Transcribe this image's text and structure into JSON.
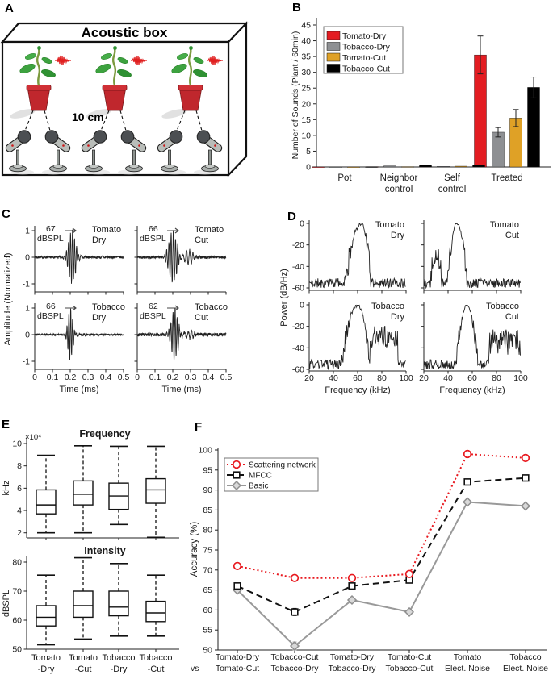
{
  "panel_labels": {
    "a": "A",
    "b": "B",
    "c": "C",
    "d": "D",
    "e": "E",
    "f": "F"
  },
  "panelA": {
    "title": "Acoustic box",
    "distance": "10 cm",
    "colors": {
      "pot_red": "#c0272d",
      "leaf_green": "#3da23f",
      "wave_red": "#e01f1f",
      "mic_gray": "#b9bdb9"
    }
  },
  "chart_data": [
    {
      "id": "B",
      "type": "bar",
      "ylabel": "Number of Sounds (Plant / 60min)",
      "ylim": [
        0,
        45
      ],
      "yticks": [
        0,
        5,
        10,
        15,
        20,
        25,
        30,
        35,
        40,
        45
      ],
      "categories": [
        "Pot",
        "Neighbor control",
        "Self control",
        "Treated"
      ],
      "cat_lines": [
        [
          "Pot"
        ],
        [
          "Neighbor",
          "control"
        ],
        [
          "Self",
          "control"
        ],
        [
          "Treated"
        ]
      ],
      "legend_position": "top-left",
      "series": [
        {
          "name": "Tomato-Dry",
          "color": "#e31c22",
          "values": [
            0.05,
            0.1,
            0.15,
            35.5
          ],
          "errors": [
            0.05,
            0.08,
            0.1,
            6
          ]
        },
        {
          "name": "Tobacco-Dry",
          "color": "#8e9093",
          "values": [
            0.05,
            0.35,
            0.2,
            11
          ],
          "errors": [
            0.05,
            0.12,
            0.1,
            1.5
          ]
        },
        {
          "name": "Tomato-Cut",
          "color": "#dfa126",
          "values": [
            0.05,
            0.1,
            0.25,
            15.5
          ],
          "errors": [
            0.05,
            0.08,
            0.12,
            2.7
          ]
        },
        {
          "name": "Tobacco-Cut",
          "color": "#000000",
          "values": [
            0.08,
            0.55,
            0.65,
            25.2
          ],
          "errors": [
            0.06,
            0.15,
            0.18,
            3.3
          ]
        }
      ]
    },
    {
      "id": "C",
      "type": "line",
      "ylabel": "Amplitude (Normalized)",
      "xlabel": "Time (ms)",
      "yticks": [
        1,
        0,
        -1
      ],
      "xticks": [
        0,
        0.1,
        0.2,
        0.3,
        0.4,
        0.5
      ],
      "xlim": [
        0,
        0.5
      ],
      "subplots": [
        {
          "name": [
            "Tomato",
            "Dry"
          ],
          "spl": "67",
          "spl_unit": "dBSPL",
          "seed": 7,
          "f": 88,
          "center": 0.21,
          "width": 0.026,
          "tail": 0.13,
          "noise": 0.04,
          "echo": 0
        },
        {
          "name": [
            "Tomato",
            "Cut"
          ],
          "spl": "66",
          "spl_unit": "dBSPL",
          "seed": 19,
          "f": 80,
          "center": 0.2,
          "width": 0.03,
          "tail": 0.1,
          "noise": 0.05,
          "echo": 0.28
        },
        {
          "name": [
            "Tobacco",
            "Dry"
          ],
          "spl": "66",
          "spl_unit": "dBSPL",
          "seed": 31,
          "f": 95,
          "center": 0.2,
          "width": 0.018,
          "tail": 0.09,
          "noise": 0.035,
          "echo": 0
        },
        {
          "name": [
            "Tobacco",
            "Cut"
          ],
          "spl": "62",
          "spl_unit": "dBSPL",
          "seed": 43,
          "f": 85,
          "center": 0.21,
          "width": 0.024,
          "tail": 0.16,
          "noise": 0.06,
          "echo": 0.12
        }
      ]
    },
    {
      "id": "D",
      "type": "line",
      "ylabel": "Power (dB/Hz)",
      "xlabel": "Frequency (kHz)",
      "yticks": [
        0,
        -20,
        -40,
        -60
      ],
      "xticks": [
        20,
        40,
        60,
        80,
        100
      ],
      "xlim": [
        20,
        100
      ],
      "ylim": [
        -60,
        0
      ],
      "subplots": [
        {
          "name": [
            "Tomato",
            "Dry"
          ],
          "peak": 63,
          "sl": 13,
          "sr": 8,
          "seed": 11,
          "bump": null,
          "plateau": null
        },
        {
          "name": [
            "Tomato",
            "Cut"
          ],
          "peak": 47,
          "sl": 7,
          "sr": 9,
          "seed": 22,
          "bump": [
            30,
            -27,
            4
          ],
          "plateau": null
        },
        {
          "name": [
            "Tobacco",
            "Dry"
          ],
          "peak": 60,
          "sl": 13,
          "sr": 10,
          "seed": 33,
          "bump": null,
          "plateau": [
            70,
            93,
            -30
          ]
        },
        {
          "name": [
            "Tobacco",
            "Cut"
          ],
          "peak": 56,
          "sl": 9,
          "sr": 8,
          "seed": 44,
          "bump": null,
          "plateau": [
            74,
            100,
            -34
          ]
        }
      ]
    },
    {
      "id": "E",
      "type": "box",
      "cat_lines": [
        [
          "Tomato",
          "-Dry"
        ],
        [
          "Tomato",
          "-Cut"
        ],
        [
          "Tobacco",
          "-Dry"
        ],
        [
          "Tobacco",
          "-Cut"
        ]
      ],
      "plots": [
        {
          "title": "Frequency",
          "ylabel": "kHz",
          "exp_label": "×10⁴",
          "yticks": [
            2,
            4,
            6,
            8,
            10
          ],
          "boxes": [
            {
              "lo": 2.0,
              "q1": 3.7,
              "med": 4.5,
              "q3": 5.85,
              "hi": 8.95
            },
            {
              "lo": 2.0,
              "q1": 4.5,
              "med": 5.45,
              "q3": 6.65,
              "hi": 9.8
            },
            {
              "lo": 2.75,
              "q1": 4.1,
              "med": 5.3,
              "q3": 6.45,
              "hi": 9.75
            },
            {
              "lo": 1.6,
              "q1": 4.65,
              "med": 5.85,
              "q3": 6.85,
              "hi": 9.75
            }
          ]
        },
        {
          "title": "Intensity",
          "ylabel": "dBSPL",
          "yticks": [
            50,
            60,
            70,
            80
          ],
          "boxes": [
            {
              "lo": 51.5,
              "q1": 58,
              "med": 61,
              "q3": 65,
              "hi": 75.5
            },
            {
              "lo": 53.5,
              "q1": 61,
              "med": 65,
              "q3": 70,
              "hi": 81.5
            },
            {
              "lo": 54.5,
              "q1": 61.5,
              "med": 64.5,
              "q3": 70,
              "hi": 79.5
            },
            {
              "lo": 54.5,
              "q1": 59.5,
              "med": 62.5,
              "q3": 66.5,
              "hi": 75.5
            }
          ]
        }
      ]
    },
    {
      "id": "F",
      "type": "line",
      "ylabel": "Accuracy (%)",
      "ylim": [
        50,
        100
      ],
      "yticks": [
        50,
        55,
        60,
        65,
        70,
        75,
        80,
        85,
        90,
        95,
        100
      ],
      "vs_label": "vs",
      "x_lines": [
        [
          "Tomato-Dry",
          "Tomato-Cut"
        ],
        [
          "Tobacco-Cut",
          "Tobacco-Dry"
        ],
        [
          "Tomato-Dry",
          "Tobacco-Dry"
        ],
        [
          "Tomato-Cut",
          "Tobacco-Cut"
        ],
        [
          "Tomato",
          "Elect. Noise"
        ],
        [
          "Tobacco",
          "Elect. Noise"
        ]
      ],
      "legend_position": "top-left",
      "series": [
        {
          "name": "Scattering network",
          "color": "#e8191f",
          "style": "dotted",
          "marker": "circle",
          "values": [
            71,
            68,
            68,
            69,
            99,
            98
          ],
          "errors": [
            0.5,
            0.5,
            0.5,
            0.5,
            0.4,
            0.4
          ]
        },
        {
          "name": "MFCC",
          "color": "#111111",
          "style": "dashed",
          "marker": "square",
          "values": [
            66,
            59.5,
            66,
            67.5,
            92,
            93
          ],
          "errors": [
            0.5,
            0.9,
            0.5,
            0.5,
            0.5,
            0.4
          ]
        },
        {
          "name": "Basic",
          "color": "#999999",
          "style": "solid",
          "marker": "diamond",
          "values": [
            65,
            51,
            62.5,
            59.5,
            87,
            86
          ],
          "errors": [
            0.5,
            1.0,
            0.5,
            0.5,
            0.4,
            0.4
          ]
        }
      ]
    }
  ]
}
